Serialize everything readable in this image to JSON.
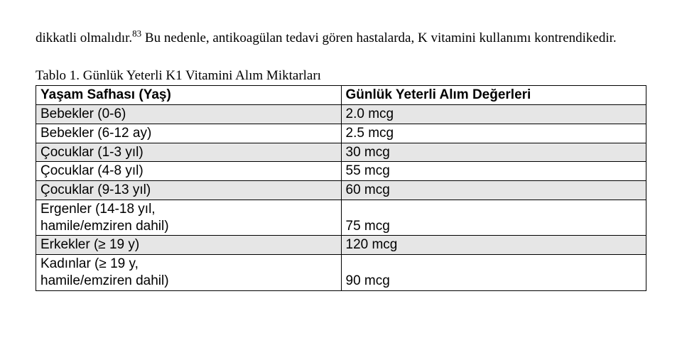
{
  "paragraph": {
    "lead_word": "dikkatli olmalıdır.",
    "sup": "83",
    "rest": " Bu nedenle, antikoagülan tedavi gören hastalarda, K vitamini kullanımı kontrendikedir."
  },
  "table": {
    "caption": "Tablo 1. Günlük Yeterli K1 Vitamini Alım Miktarları",
    "header": {
      "col1": "Yaşam Safhası (Yaş)",
      "col2": "Günlük Yeterli Alım Değerleri"
    },
    "rows": [
      {
        "col1": "Bebekler (0-6)",
        "col2": "2.0 mcg",
        "shaded": true
      },
      {
        "col1": "Bebekler (6-12 ay)",
        "col2": "2.5 mcg",
        "shaded": false
      },
      {
        "col1": "Çocuklar (1-3 yıl)",
        "col2": "30 mcg",
        "shaded": true
      },
      {
        "col1": "Çocuklar (4-8 yıl)",
        "col2": "55 mcg",
        "shaded": false
      },
      {
        "col1": "Çocuklar (9-13 yıl)",
        "col2": "60 mcg",
        "shaded": true
      },
      {
        "col1": "Ergenler (14-18 yıl,",
        "col2": "",
        "shaded": false
      },
      {
        "col1": "hamile/emziren dahil)",
        "col2": "75 mcg",
        "shaded": false,
        "continue": true
      },
      {
        "col1": "Erkekler (≥ 19 y)",
        "col2": "120 mcg",
        "shaded": true
      },
      {
        "col1": "Kadınlar (≥ 19 y,",
        "col2": "",
        "shaded": false
      },
      {
        "col1": "hamile/emziren dahil)",
        "col2": "90 mcg",
        "shaded": false,
        "continue": true
      }
    ]
  }
}
